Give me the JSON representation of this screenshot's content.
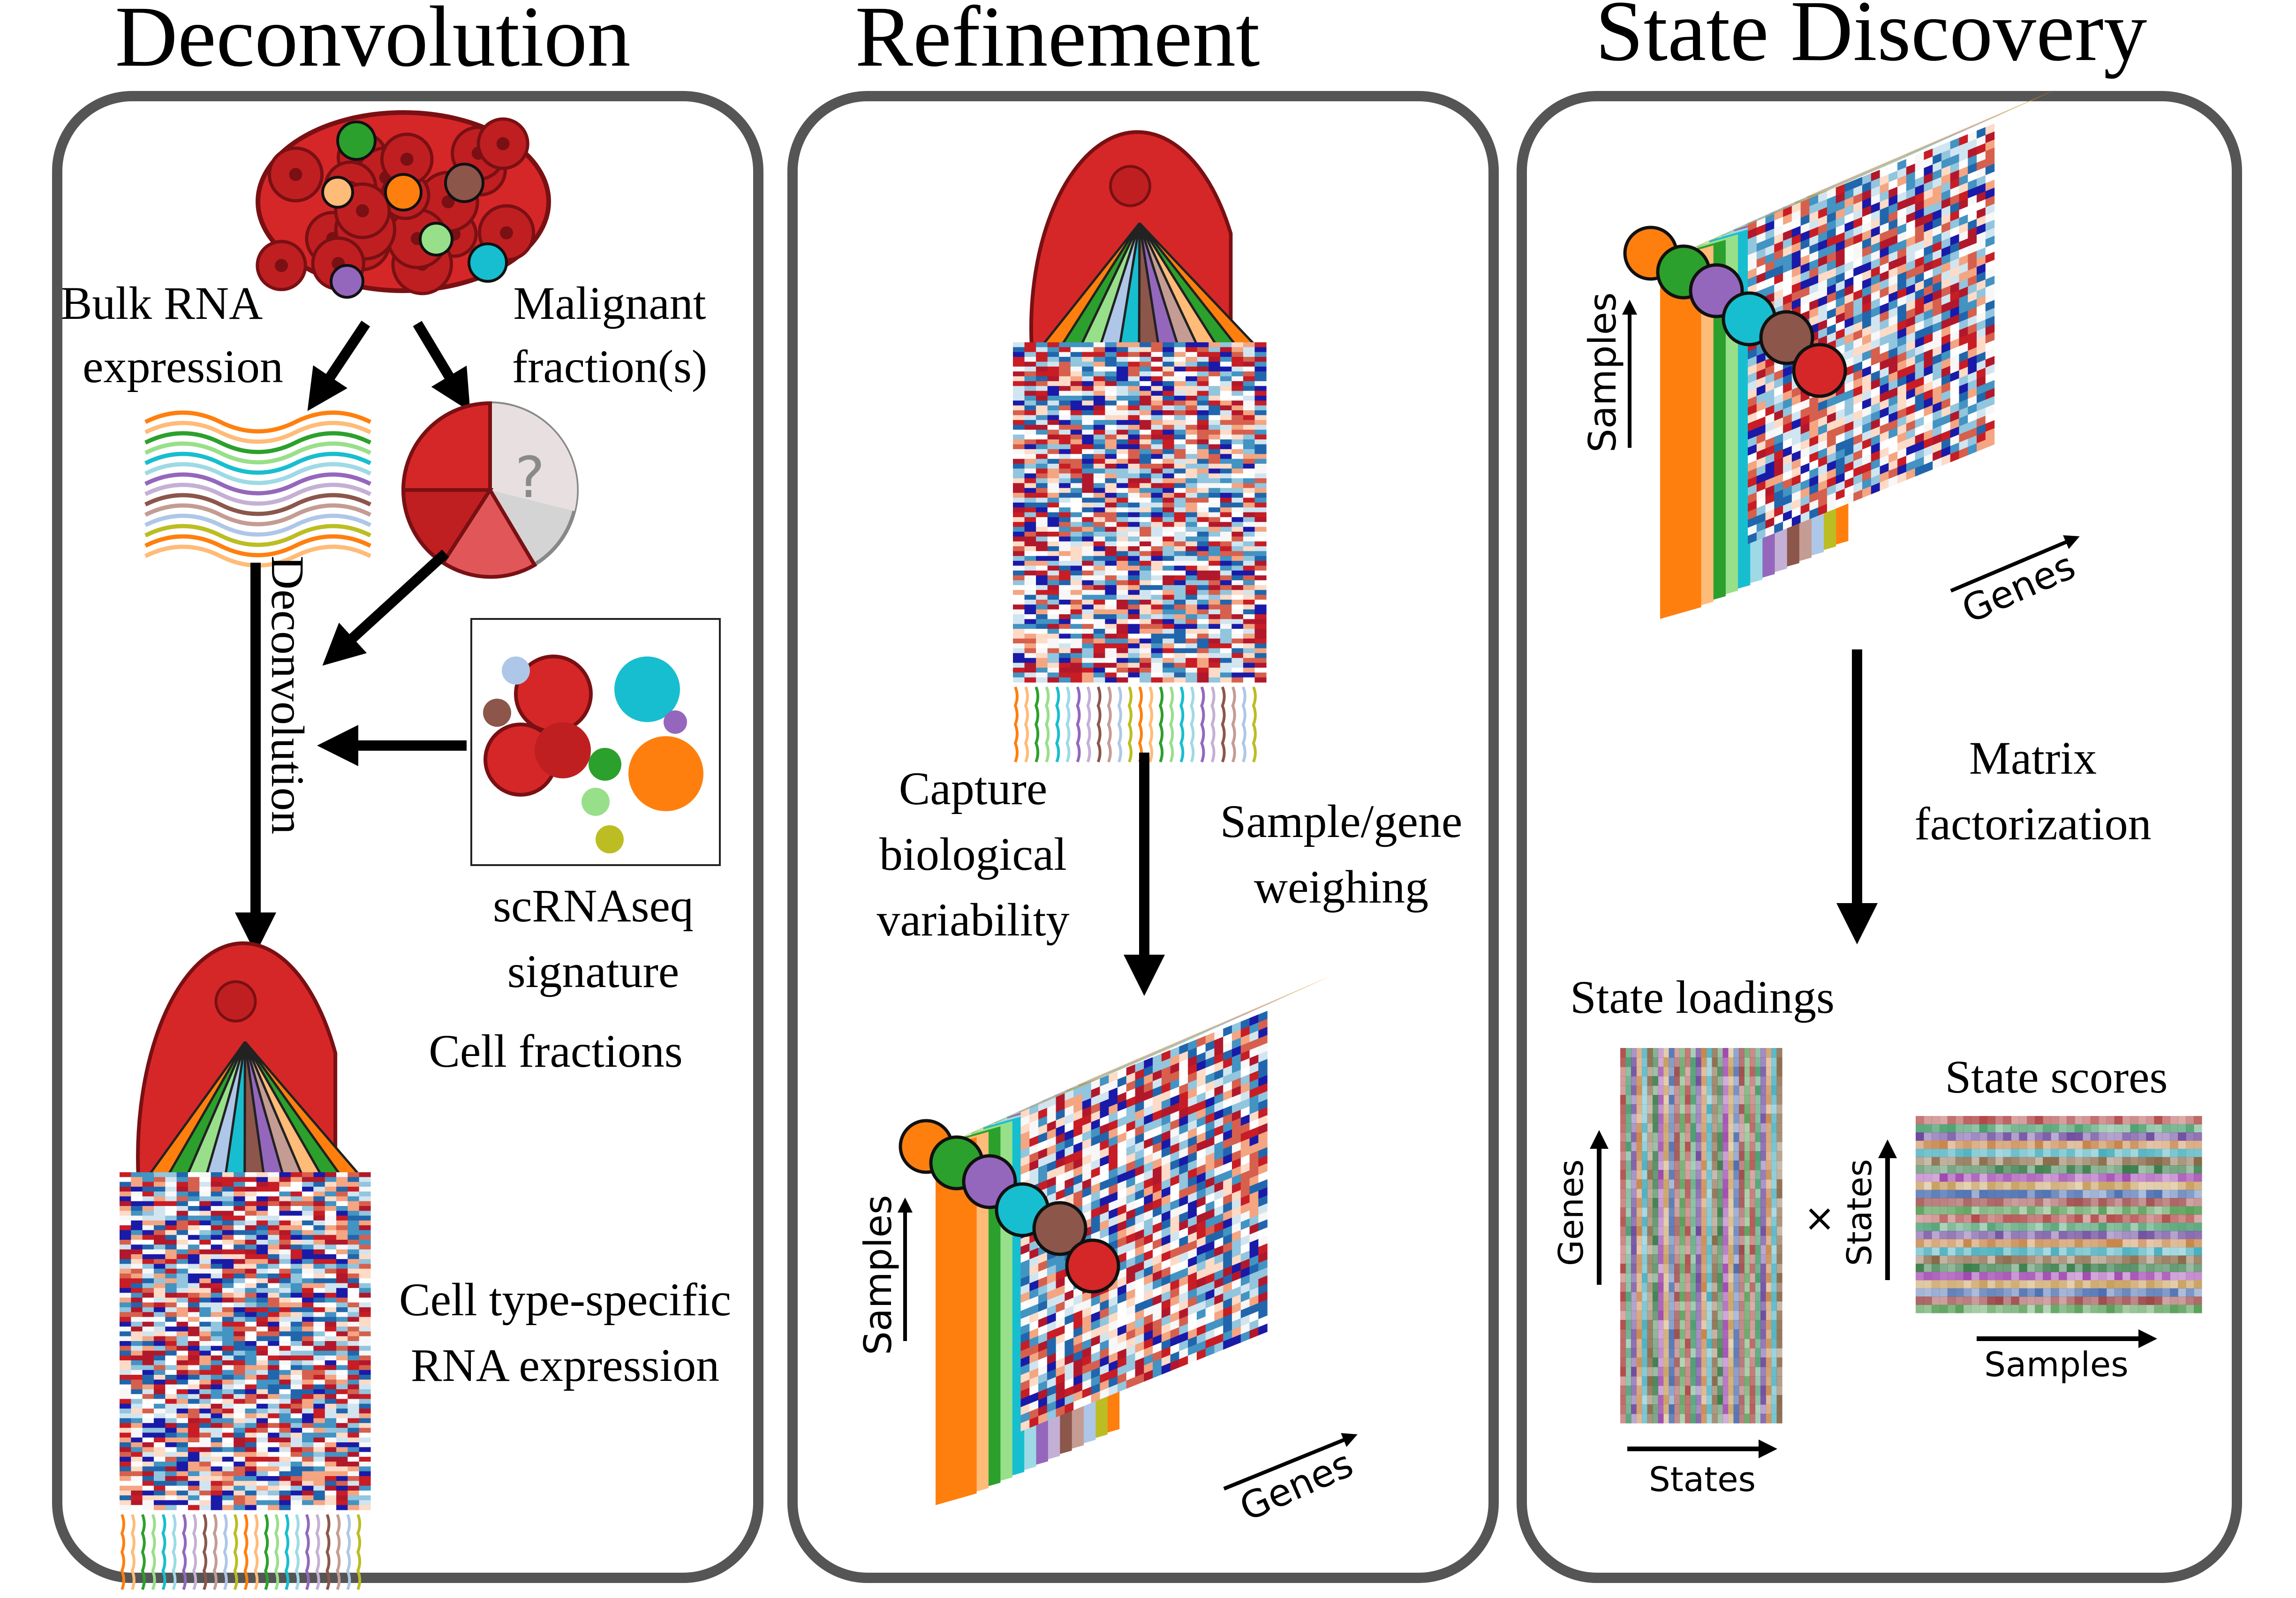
{
  "panels": [
    {
      "title": "Deconvolution"
    },
    {
      "title": "Refinement"
    },
    {
      "title": "State Discovery"
    }
  ],
  "deconvolution": {
    "bulk_label_1": "Bulk RNA",
    "bulk_label_2": "expression",
    "malignant_label_1": "Malignant",
    "malignant_label_2": "fraction(s)",
    "unknown_mark": "?",
    "arrow_label": "Deconvolution",
    "scrna_label_1": "scRNAseq",
    "scrna_label_2": "signature",
    "cell_fractions": "Cell fractions",
    "cts_label_1": "Cell type-specific",
    "cts_label_2": "RNA expression"
  },
  "refinement": {
    "capture_1": "Capture",
    "capture_2": "biological",
    "capture_3": "variability",
    "weigh_1": "Sample/gene",
    "weigh_2": "weighing",
    "axis_samples": "Samples",
    "axis_genes": "Genes"
  },
  "state_discovery": {
    "axis_samples": "Samples",
    "axis_genes": "Genes",
    "mf_1": "Matrix",
    "mf_2": "factorization",
    "loadings_title": "State loadings",
    "loadings_y": "Genes",
    "loadings_x": "States",
    "times": "×",
    "scores_title": "State scores",
    "scores_y": "States",
    "scores_x": "Samples"
  },
  "colors": {
    "malignant": "#d62728",
    "malignant_dark": "#7a1013",
    "heat_red": "#d7191c",
    "heat_blue": "#2c2cd6",
    "orange": "#ff7f0e",
    "green": "#2ca02c",
    "teal": "#17becf",
    "purple": "#9467bd",
    "brown": "#8c564b",
    "panel_border": "#555555"
  }
}
